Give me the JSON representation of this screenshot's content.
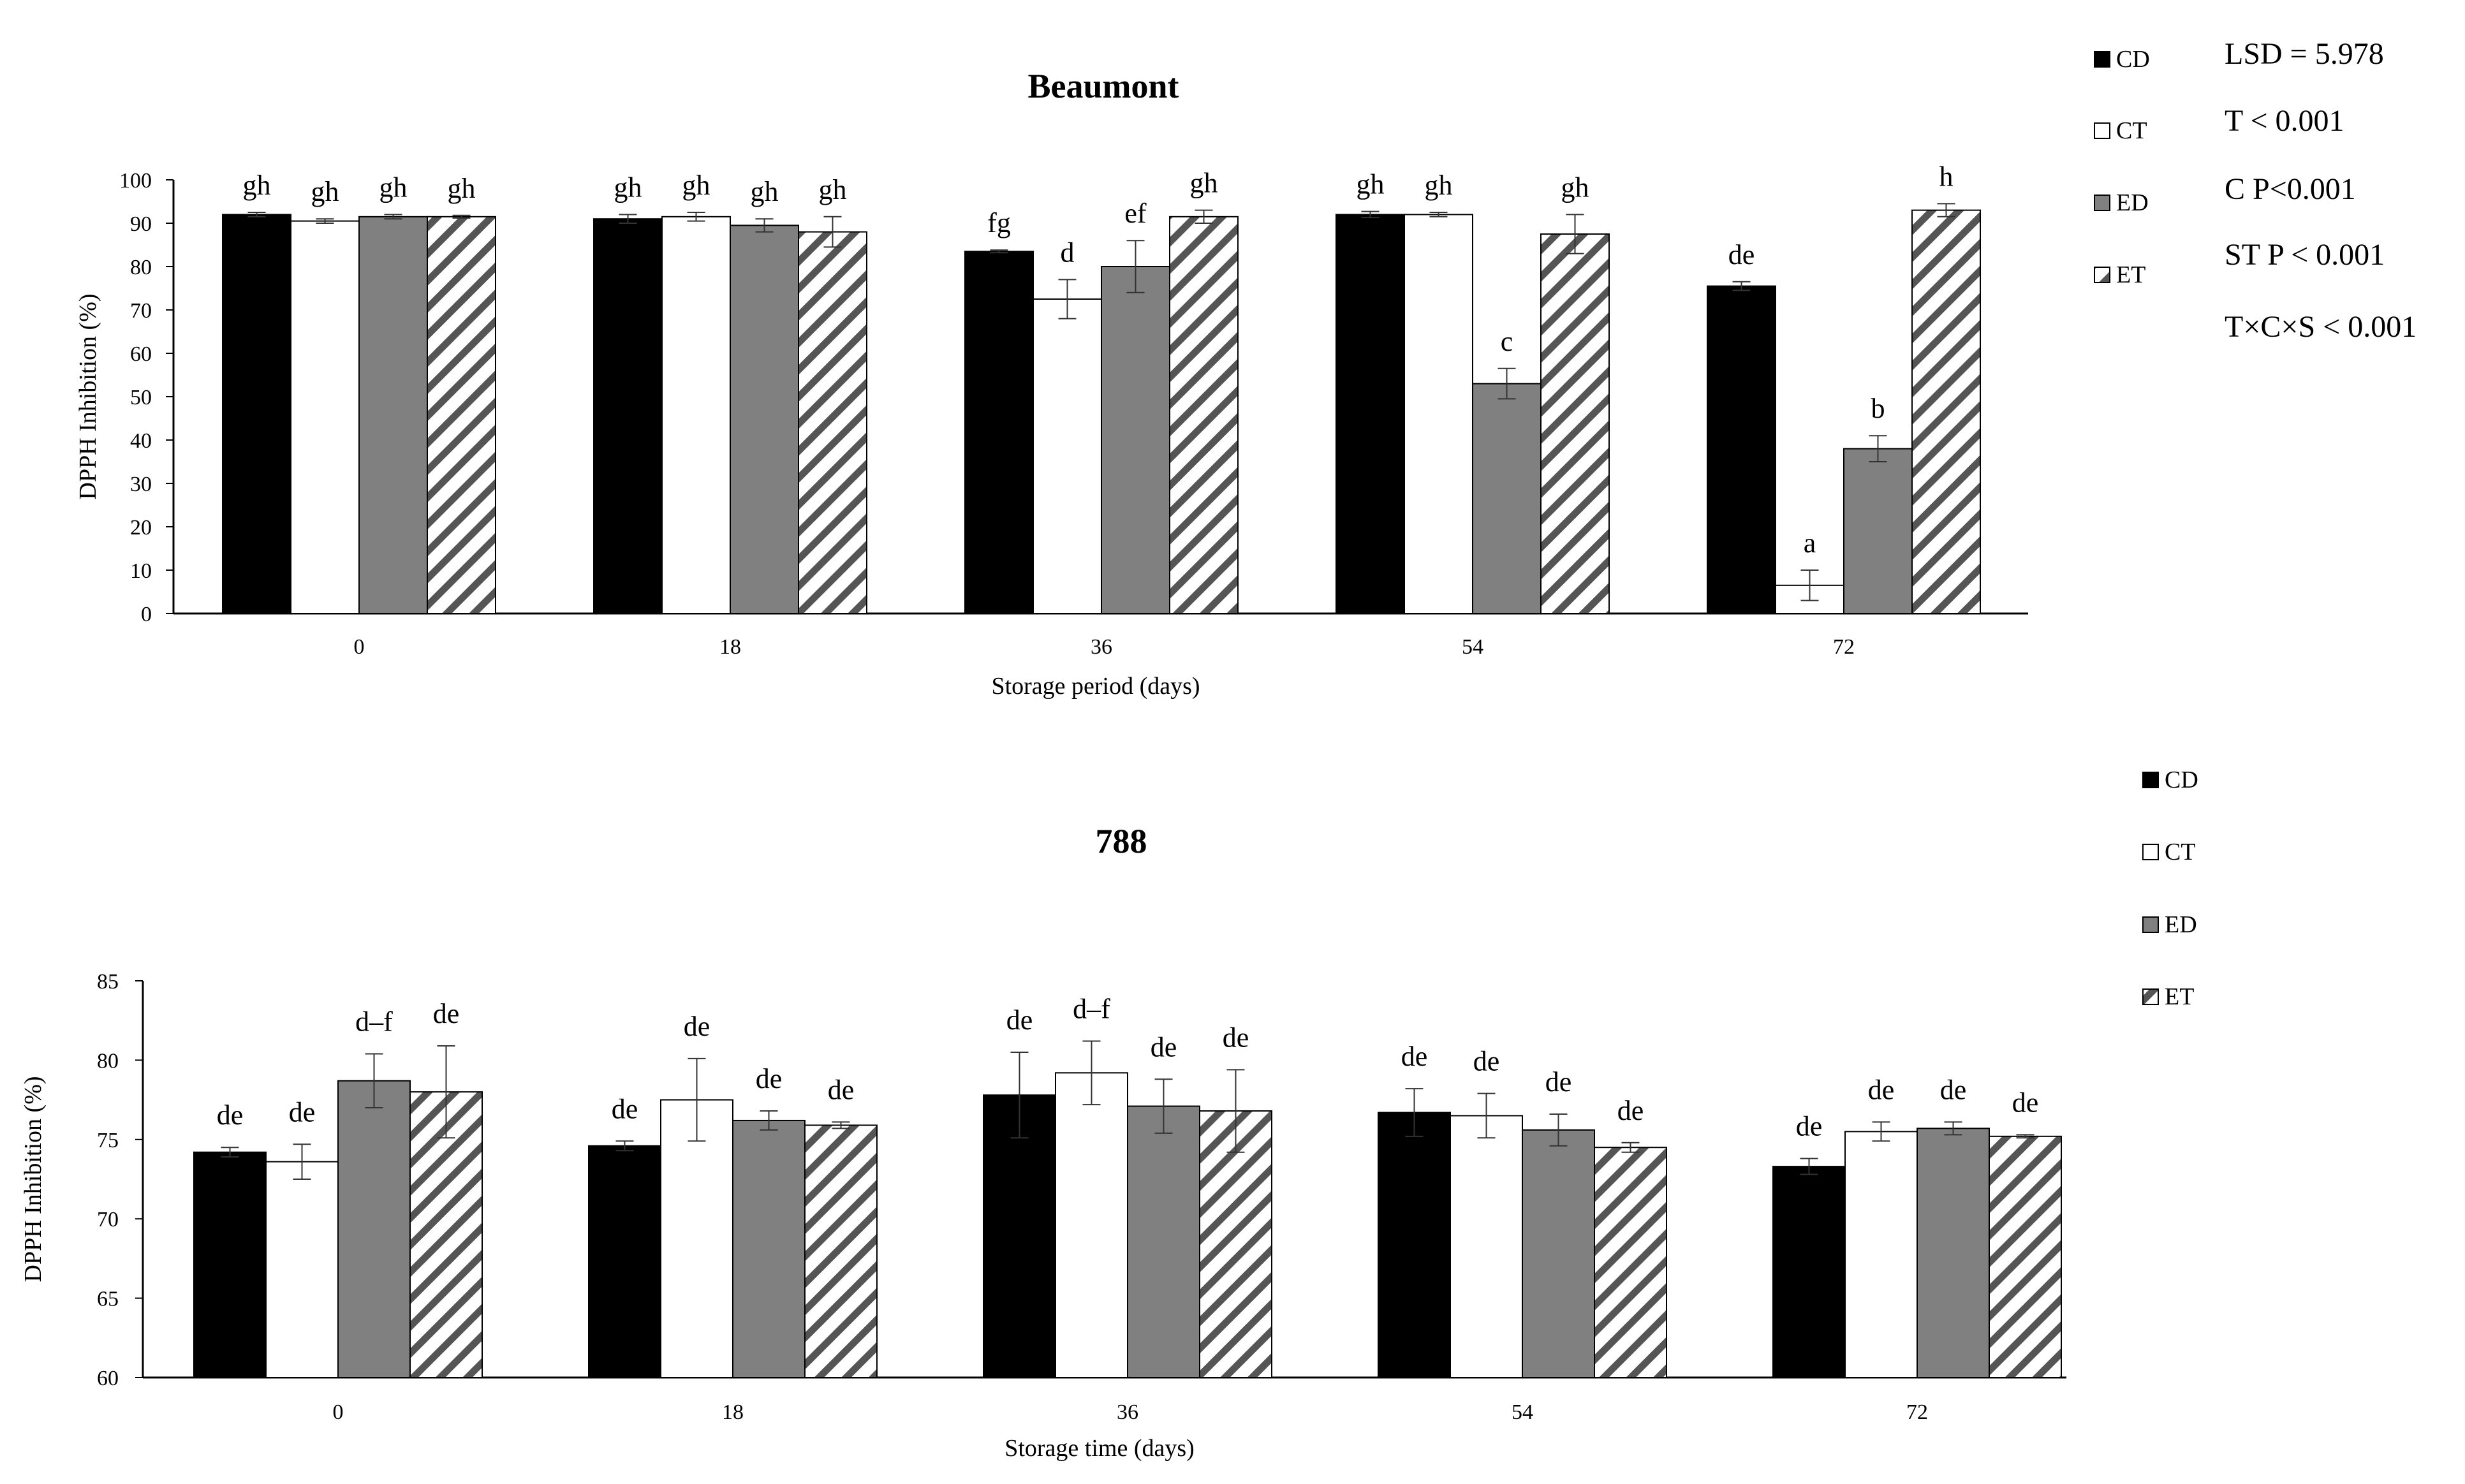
{
  "stats": [
    "LSD = 5.978",
    "T < 0.001",
    "C P<0.001",
    "ST P < 0.001",
    "T×C×S < 0.001"
  ],
  "chart_data": [
    {
      "type": "bar",
      "title": "Beaumont",
      "xlabel": "Storage period (days)",
      "ylabel": "DPPH Inhibition (%)",
      "ylim": [
        0,
        100
      ],
      "yticks": [
        0,
        10,
        20,
        30,
        40,
        50,
        60,
        70,
        80,
        90,
        100
      ],
      "categories": [
        "0",
        "18",
        "36",
        "54",
        "72"
      ],
      "legend_position": "right",
      "series": [
        {
          "name": "CD",
          "fill": "solid-black",
          "values": [
            92,
            91,
            83.5,
            92,
            75.5
          ],
          "errors": [
            0.5,
            1.0,
            0.3,
            0.7,
            1.0
          ],
          "letters": [
            "gh",
            "gh",
            "fg",
            "gh",
            "de"
          ]
        },
        {
          "name": "CT",
          "fill": "white",
          "values": [
            90.5,
            91.5,
            72.5,
            92,
            6.5
          ],
          "errors": [
            0.5,
            1.0,
            4.5,
            0.5,
            3.5
          ],
          "letters": [
            "gh",
            "gh",
            "d",
            "gh",
            "a"
          ]
        },
        {
          "name": "ED",
          "fill": "grey",
          "values": [
            91.5,
            89.5,
            80,
            53,
            38
          ],
          "errors": [
            0.5,
            1.5,
            6.0,
            3.5,
            3.0
          ],
          "letters": [
            "gh",
            "gh",
            "ef",
            "c",
            "b"
          ]
        },
        {
          "name": "ET",
          "fill": "hatched",
          "values": [
            91.5,
            88,
            91.5,
            87.5,
            93
          ],
          "errors": [
            0.3,
            3.5,
            1.5,
            4.5,
            1.5
          ],
          "letters": [
            "gh",
            "gh",
            "gh",
            "gh",
            "h"
          ]
        }
      ]
    },
    {
      "type": "bar",
      "title": "788",
      "xlabel": "Storage time (days)",
      "ylabel": "DPPH Inhibition (%)",
      "ylim": [
        60,
        85
      ],
      "yticks": [
        60,
        65,
        70,
        75,
        80,
        85
      ],
      "categories": [
        "0",
        "18",
        "36",
        "54",
        "72"
      ],
      "legend_position": "right",
      "series": [
        {
          "name": "CD",
          "fill": "solid-black",
          "values": [
            74.2,
            74.6,
            77.8,
            76.7,
            73.3
          ],
          "errors": [
            0.3,
            0.3,
            2.7,
            1.5,
            0.5
          ],
          "letters": [
            "de",
            "de",
            "de",
            "de",
            "de"
          ]
        },
        {
          "name": "CT",
          "fill": "white",
          "values": [
            73.6,
            77.5,
            79.2,
            76.5,
            75.5
          ],
          "errors": [
            1.1,
            2.6,
            2.0,
            1.4,
            0.6
          ],
          "letters": [
            "de",
            "de",
            "d–f",
            "de",
            "de"
          ]
        },
        {
          "name": "ED",
          "fill": "grey",
          "values": [
            78.7,
            76.2,
            77.1,
            75.6,
            75.7
          ],
          "errors": [
            1.7,
            0.6,
            1.7,
            1.0,
            0.4
          ],
          "letters": [
            "d–f",
            "de",
            "de",
            "de",
            "de"
          ]
        },
        {
          "name": "ET",
          "fill": "hatched",
          "values": [
            78,
            75.9,
            76.8,
            74.5,
            75.2
          ],
          "errors": [
            2.9,
            0.2,
            2.6,
            0.3,
            0.1
          ],
          "letters": [
            "de",
            "de",
            "de",
            "de",
            "de"
          ]
        }
      ]
    }
  ]
}
